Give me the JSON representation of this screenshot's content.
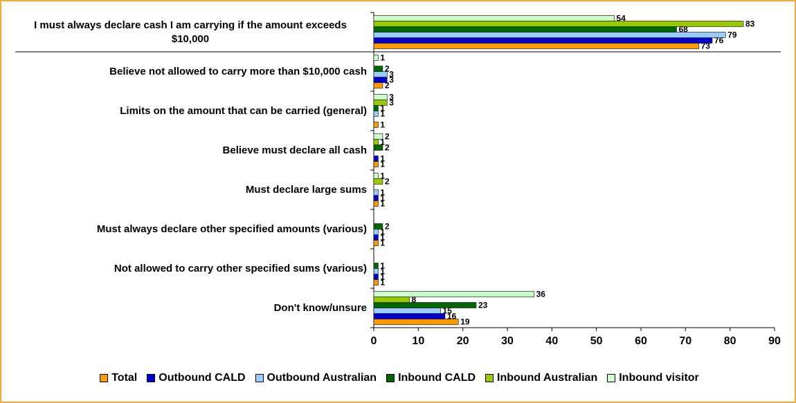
{
  "chart_data": {
    "type": "hbar",
    "categories": [
      "I must always declare cash I am carrying if the amount exceeds $10,000",
      "Believe not allowed to carry more than $10,000 cash",
      "Limits on the amount that can be carried (general)",
      "Believe must declare all cash",
      "Must declare large sums",
      "Must always declare other specified amounts (various)",
      "Not allowed to carry other specified sums (various)",
      "Don't know/unsure"
    ],
    "series": [
      {
        "name": "Total",
        "color": "#ff9900",
        "values": [
          73,
          2,
          1,
          1,
          1,
          1,
          1,
          19
        ]
      },
      {
        "name": "Outbound CALD",
        "color": "#0000cc",
        "values": [
          76,
          3,
          null,
          1,
          1,
          1,
          1,
          16
        ]
      },
      {
        "name": "Outbound Australian",
        "color": "#99ccff",
        "values": [
          79,
          3,
          1,
          null,
          1,
          1,
          1,
          15
        ]
      },
      {
        "name": "Inbound CALD",
        "color": "#006600",
        "values": [
          68,
          2,
          1,
          2,
          null,
          2,
          1,
          23
        ]
      },
      {
        "name": "Inbound Australian",
        "color": "#99cc00",
        "values": [
          83,
          null,
          3,
          1,
          2,
          null,
          null,
          8
        ]
      },
      {
        "name": "Inbound visitor",
        "color": "#ccffcc",
        "values": [
          54,
          1,
          3,
          2,
          1,
          null,
          null,
          36
        ]
      }
    ],
    "xlim": [
      0,
      90
    ],
    "xticks": [
      0,
      10,
      20,
      30,
      40,
      50,
      60,
      70,
      80,
      90
    ]
  }
}
